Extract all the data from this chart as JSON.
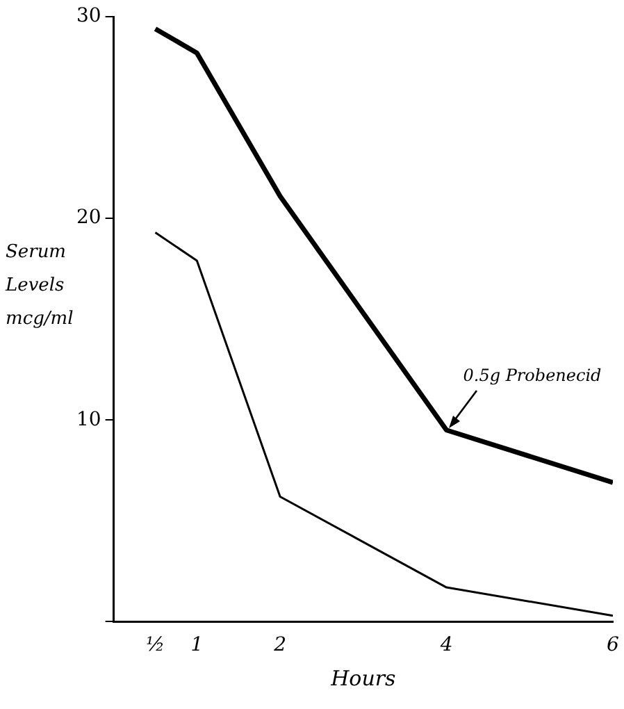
{
  "chart_data": {
    "type": "line",
    "ylabel": "Serum Levels mcg/ml",
    "xlabel": "Hours",
    "x": [
      0.5,
      1,
      2,
      4,
      6
    ],
    "series": [
      {
        "color": "#000000",
        "values": [
          29.4,
          28.2,
          21.1,
          9.5,
          6.9
        ]
      },
      {
        "color": "#000000",
        "values": [
          19.3,
          17.9,
          6.2,
          1.7,
          0.3
        ]
      }
    ],
    "xlim": [
      0,
      6
    ],
    "xticks": [
      {
        "value": 0.5,
        "label": "½"
      },
      1,
      2,
      4,
      6
    ],
    "ylim": [
      0,
      30
    ],
    "yticks": [
      {
        "value": 0,
        "label": null
      },
      10,
      20,
      30
    ],
    "annotations": [
      {
        "text": "0.5g Probenecid",
        "x": 4,
        "y": 9.5
      }
    ],
    "grid": false,
    "legend": false,
    "marker": "none",
    "line_style": "solid"
  }
}
